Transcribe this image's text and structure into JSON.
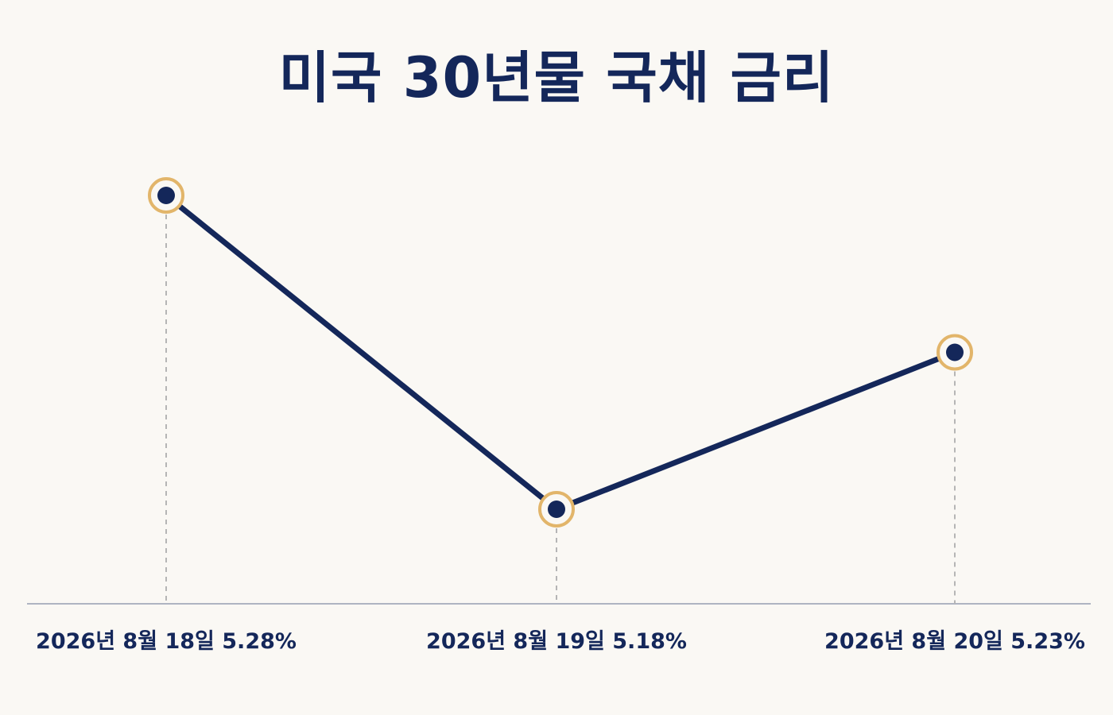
{
  "title": "미국 30년물 국채 금리",
  "colors": {
    "background": "#faf8f4",
    "line": "#14275a",
    "marker_ring": "#e2b56a",
    "axis": "#aeb4c2",
    "guide": "#b5b5b5"
  },
  "chart_data": {
    "type": "line",
    "title": "미국 30년물 국채 금리",
    "xlabel": "",
    "ylabel": "",
    "categories": [
      "2026년 8월 18일 5.28%",
      "2026년 8월 19일 5.18%",
      "2026년 8월 20일 5.23%"
    ],
    "series": [
      {
        "values": [
          5.28,
          5.18,
          5.23
        ]
      }
    ],
    "ylim": [
      5.15,
      5.3
    ],
    "grid": false,
    "legend": "none",
    "markers": true,
    "drop_lines": true
  }
}
